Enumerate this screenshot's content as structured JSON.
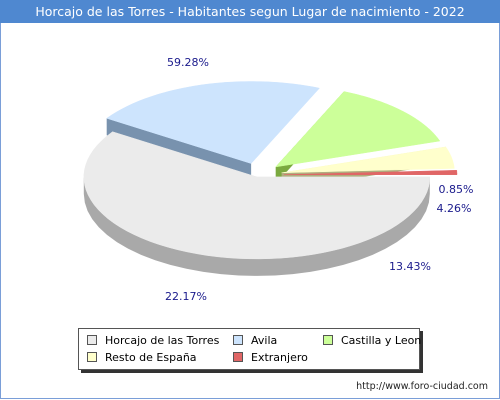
{
  "title": "Horcajo de las Torres - Habitantes segun Lugar de nacimiento - 2022",
  "source": "http://www.foro-ciudad.com",
  "chart_data": {
    "type": "pie",
    "title": "Horcajo de las Torres - Habitantes segun Lugar de nacimiento - 2022",
    "legend_position": "bottom",
    "slices": [
      {
        "name": "Horcajo de las Torres",
        "value": 59.28,
        "label": "59.28%",
        "color": "#ebebeb",
        "side": "#a9a9a9"
      },
      {
        "name": "Avila",
        "value": 22.17,
        "label": "22.17%",
        "color": "#cde4fd",
        "side": "#7892ae"
      },
      {
        "name": "Castilla y Leon",
        "value": 13.43,
        "label": "13.43%",
        "color": "#ccff99",
        "side": "#7aa93f"
      },
      {
        "name": "Resto de España",
        "value": 4.26,
        "label": "4.26%",
        "color": "#ffffcc",
        "side": "#b0ad7e"
      },
      {
        "name": "Extranjero",
        "value": 0.85,
        "label": "0.85%",
        "color": "#e06666",
        "side": "#8e3b3b"
      }
    ]
  }
}
